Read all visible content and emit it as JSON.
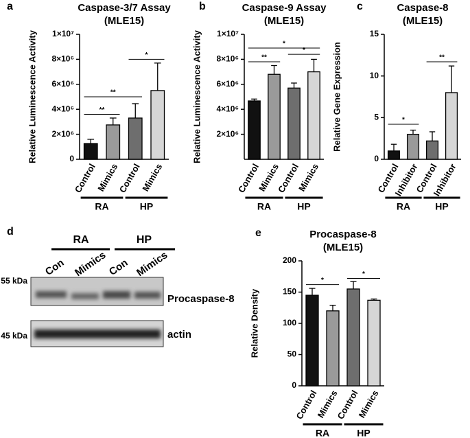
{
  "chart_data": [
    {
      "type": "bar",
      "panel": "a",
      "title": [
        "Caspase-3/7 Assay",
        "(MLE15)"
      ],
      "ylabel": "Relative Luminescence Activity",
      "categories": [
        "Control",
        "Mimics",
        "Control",
        "Mimics"
      ],
      "values": [
        1260000,
        2750000,
        3300000,
        5500000
      ],
      "errors": [
        340000,
        550000,
        1150000,
        2200000
      ],
      "colors": [
        "#111111",
        "#9a9a9a",
        "#6e6e6e",
        "#d6d6d6"
      ],
      "groups": [
        {
          "label": "RA",
          "span": [
            0,
            1
          ]
        },
        {
          "label": "HP",
          "span": [
            2,
            3
          ]
        }
      ],
      "significance": [
        {
          "from": 0,
          "to": 1,
          "y": 3600000,
          "label": "**"
        },
        {
          "from": 0,
          "to": 2,
          "y": 5000000,
          "label": "**"
        },
        {
          "from": 2,
          "to": 3,
          "y": 8000000,
          "label": "*"
        }
      ],
      "ylim": [
        0,
        10000000
      ],
      "yticks": [
        0,
        {
          "value": 2000000,
          "label": "2×10⁶"
        },
        {
          "value": 4000000,
          "label": "4×10⁶"
        },
        {
          "value": 6000000,
          "label": "6×10⁶"
        },
        {
          "value": 8000000,
          "label": "8×10⁶"
        },
        {
          "value": 10000000,
          "label": "1×10⁷"
        }
      ]
    },
    {
      "type": "bar",
      "panel": "b",
      "title": [
        "Caspase-9 Assay",
        "(MLE15)"
      ],
      "ylabel": "Relative Luminescence Activity",
      "categories": [
        "Control",
        "Mimics",
        "Control",
        "Mimics"
      ],
      "values": [
        4670000,
        6800000,
        5700000,
        7000000
      ],
      "errors": [
        150000,
        700000,
        400000,
        1000000
      ],
      "colors": [
        "#111111",
        "#9a9a9a",
        "#6e6e6e",
        "#d6d6d6"
      ],
      "groups": [
        {
          "label": "RA",
          "span": [
            0,
            1
          ]
        },
        {
          "label": "HP",
          "span": [
            2,
            3
          ]
        }
      ],
      "significance": [
        {
          "from": 0,
          "to": 1,
          "y": 7800000,
          "label": "**"
        },
        {
          "from": 0,
          "to": 3,
          "y": 8900000,
          "label": "*"
        },
        {
          "from": 2,
          "to": 3,
          "y": 8400000,
          "label": "*"
        }
      ],
      "ylim": [
        0,
        10000000
      ],
      "yticks": [
        {
          "value": 2000000,
          "label": "2×10⁶"
        },
        {
          "value": 4000000,
          "label": "4×10⁶"
        },
        {
          "value": 6000000,
          "label": "6×10⁶"
        },
        {
          "value": 8000000,
          "label": "8×10⁶"
        },
        {
          "value": 10000000,
          "label": "1×10⁷"
        }
      ]
    },
    {
      "type": "bar",
      "panel": "c",
      "title": [
        "Caspase-8",
        "(MLE15)"
      ],
      "ylabel": "Relative Gene Expression",
      "categories": [
        "Control",
        "Inhibitor",
        "Control",
        "Inhibitor"
      ],
      "values": [
        1.0,
        3.0,
        2.2,
        8.0
      ],
      "errors": [
        0.8,
        0.5,
        1.1,
        3.2
      ],
      "colors": [
        "#111111",
        "#9a9a9a",
        "#6e6e6e",
        "#d6d6d6"
      ],
      "groups": [
        {
          "label": "RA",
          "span": [
            0,
            1
          ]
        },
        {
          "label": "HP",
          "span": [
            2,
            3
          ]
        }
      ],
      "significance": [
        {
          "from": 0,
          "to": 1,
          "y": 4.2,
          "label": "*"
        },
        {
          "from": 2,
          "to": 3,
          "y": 11.7,
          "label": "**"
        }
      ],
      "ylim": [
        0,
        15
      ],
      "yticks": [
        0,
        5,
        10,
        15
      ]
    },
    {
      "type": "bar",
      "panel": "e",
      "title": [
        "Procaspase-8",
        "(MLE15)"
      ],
      "ylabel": "Relative Density",
      "categories": [
        "Control",
        "Mimics",
        "Control",
        "Mimics"
      ],
      "values": [
        145,
        120,
        155,
        137
      ],
      "errors": [
        11,
        9,
        12,
        2
      ],
      "colors": [
        "#111111",
        "#9a9a9a",
        "#6e6e6e",
        "#d6d6d6"
      ],
      "groups": [
        {
          "label": "RA",
          "span": [
            0,
            1
          ]
        },
        {
          "label": "HP",
          "span": [
            2,
            3
          ]
        }
      ],
      "significance": [
        {
          "from": 0,
          "to": 1,
          "y": 162,
          "label": "*"
        },
        {
          "from": 2,
          "to": 3,
          "y": 172,
          "label": "*"
        }
      ],
      "ylim": [
        0,
        200
      ],
      "yticks": [
        0,
        50,
        100,
        150,
        200
      ]
    }
  ],
  "blot": {
    "panel": "d",
    "groups": [
      "RA",
      "HP"
    ],
    "lanes": [
      "Con",
      "Mimics",
      "Con",
      "Mimics"
    ],
    "rows": [
      {
        "size": "55 kDa",
        "protein": "Procaspase-8"
      },
      {
        "size": "45 kDa",
        "protein": "actin"
      }
    ]
  }
}
